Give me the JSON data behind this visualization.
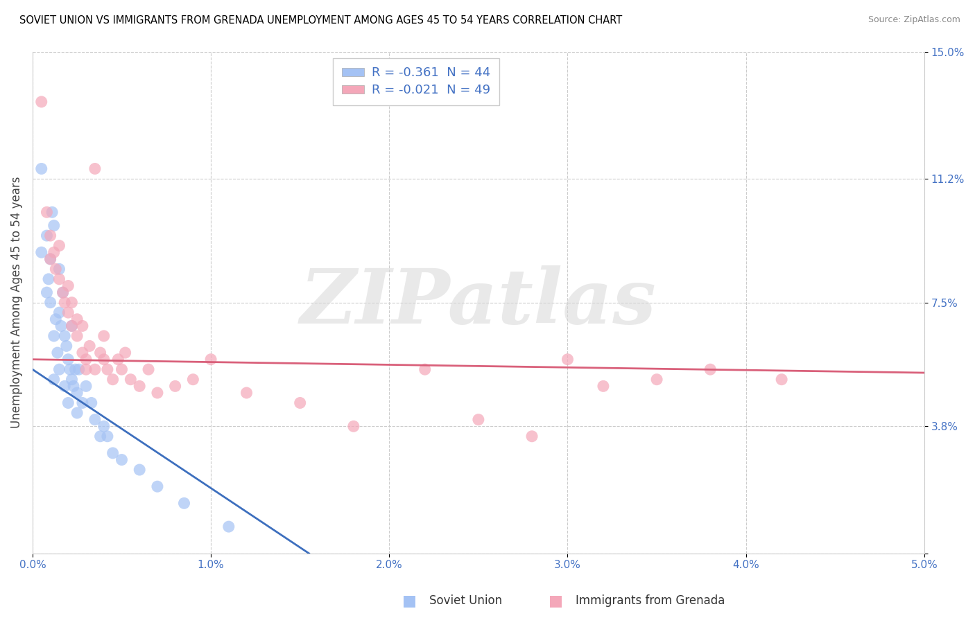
{
  "title": "SOVIET UNION VS IMMIGRANTS FROM GRENADA UNEMPLOYMENT AMONG AGES 45 TO 54 YEARS CORRELATION CHART",
  "source": "Source: ZipAtlas.com",
  "ylabel": "Unemployment Among Ages 45 to 54 years",
  "xmin": 0.0,
  "xmax": 5.0,
  "ymin": 0.0,
  "ymax": 15.0,
  "yticks": [
    0.0,
    3.8,
    7.5,
    11.2,
    15.0
  ],
  "xticks": [
    0.0,
    1.0,
    2.0,
    3.0,
    4.0,
    5.0
  ],
  "xtick_labels": [
    "0.0%",
    "1.0%",
    "2.0%",
    "3.0%",
    "4.0%",
    "5.0%"
  ],
  "ytick_labels": [
    "",
    "3.8%",
    "7.5%",
    "11.2%",
    "15.0%"
  ],
  "blue_color": "#a4c2f4",
  "pink_color": "#f4a7b9",
  "blue_label": "Soviet Union",
  "pink_label": "Immigrants from Grenada",
  "blue_R": "-0.361",
  "blue_N": "44",
  "pink_R": "-0.021",
  "pink_N": "49",
  "accent_color": "#4472c4",
  "title_color": "#000000",
  "blue_trend_color": "#3d6fbe",
  "pink_trend_color": "#d9607a",
  "blue_scatter_x": [
    0.05,
    0.05,
    0.08,
    0.08,
    0.09,
    0.1,
    0.1,
    0.11,
    0.12,
    0.12,
    0.12,
    0.13,
    0.14,
    0.15,
    0.15,
    0.15,
    0.16,
    0.17,
    0.18,
    0.18,
    0.19,
    0.2,
    0.2,
    0.21,
    0.22,
    0.22,
    0.23,
    0.24,
    0.25,
    0.25,
    0.26,
    0.28,
    0.3,
    0.33,
    0.35,
    0.38,
    0.4,
    0.42,
    0.45,
    0.5,
    0.6,
    0.7,
    0.85,
    1.1
  ],
  "blue_scatter_y": [
    11.5,
    9.0,
    7.8,
    9.5,
    8.2,
    8.8,
    7.5,
    10.2,
    9.8,
    6.5,
    5.2,
    7.0,
    6.0,
    8.5,
    7.2,
    5.5,
    6.8,
    7.8,
    6.5,
    5.0,
    6.2,
    5.8,
    4.5,
    5.5,
    5.2,
    6.8,
    5.0,
    5.5,
    4.8,
    4.2,
    5.5,
    4.5,
    5.0,
    4.5,
    4.0,
    3.5,
    3.8,
    3.5,
    3.0,
    2.8,
    2.5,
    2.0,
    1.5,
    0.8
  ],
  "pink_scatter_x": [
    0.05,
    0.08,
    0.1,
    0.1,
    0.12,
    0.13,
    0.15,
    0.15,
    0.17,
    0.18,
    0.2,
    0.2,
    0.22,
    0.22,
    0.25,
    0.25,
    0.28,
    0.28,
    0.3,
    0.3,
    0.32,
    0.35,
    0.38,
    0.4,
    0.4,
    0.42,
    0.45,
    0.48,
    0.5,
    0.52,
    0.55,
    0.6,
    0.65,
    0.7,
    0.8,
    0.9,
    1.0,
    1.2,
    1.5,
    1.8,
    2.2,
    2.5,
    2.8,
    3.0,
    3.2,
    3.5,
    3.8,
    4.2,
    0.35
  ],
  "pink_scatter_y": [
    13.5,
    10.2,
    9.5,
    8.8,
    9.0,
    8.5,
    9.2,
    8.2,
    7.8,
    7.5,
    7.2,
    8.0,
    7.5,
    6.8,
    7.0,
    6.5,
    6.8,
    6.0,
    5.8,
    5.5,
    6.2,
    5.5,
    6.0,
    5.8,
    6.5,
    5.5,
    5.2,
    5.8,
    5.5,
    6.0,
    5.2,
    5.0,
    5.5,
    4.8,
    5.0,
    5.2,
    5.8,
    4.8,
    4.5,
    3.8,
    5.5,
    4.0,
    3.5,
    5.8,
    5.0,
    5.2,
    5.5,
    5.2,
    11.5
  ],
  "blue_trend_x": [
    0.0,
    1.55
  ],
  "blue_trend_y": [
    5.5,
    0.0
  ],
  "pink_trend_x": [
    0.0,
    5.0
  ],
  "pink_trend_y": [
    5.8,
    5.4
  ],
  "background_color": "#ffffff",
  "grid_color": "#cccccc",
  "watermark_text": "ZIPatlas"
}
